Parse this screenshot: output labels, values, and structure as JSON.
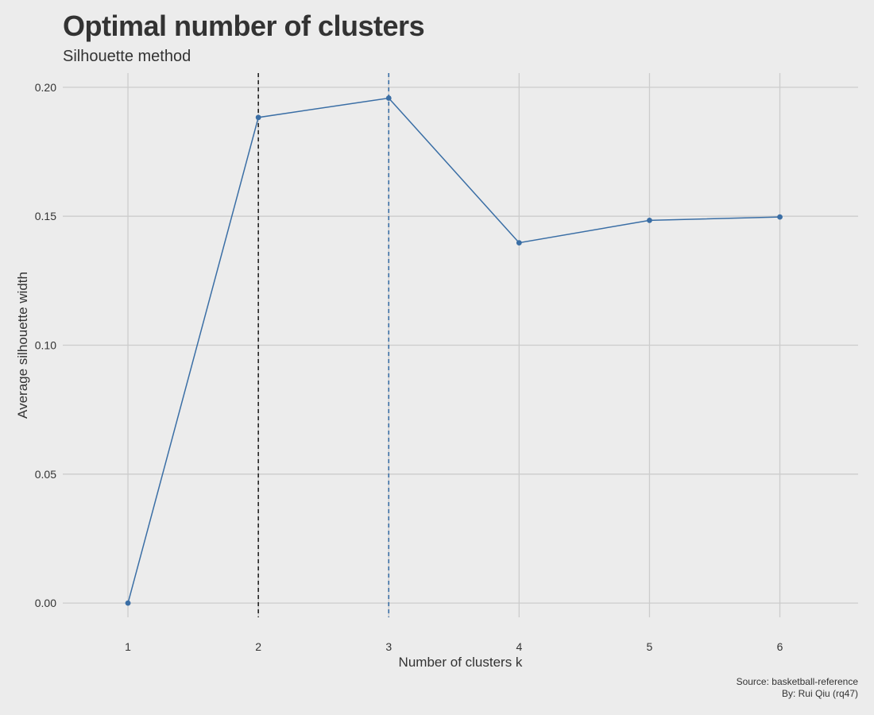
{
  "title": "Optimal number of clusters",
  "subtitle": "Silhouette method",
  "caption": {
    "line1": "Source: basketball-reference",
    "line2": "By: Rui Qiu (rq47)"
  },
  "chart_data": {
    "type": "line",
    "title": "Optimal number of clusters",
    "subtitle": "Silhouette method",
    "xlabel": "Number of clusters k",
    "ylabel": "Average silhouette width",
    "x": [
      1,
      2,
      3,
      4,
      5,
      6
    ],
    "x_tick_labels": [
      "1",
      "2",
      "3",
      "4",
      "5",
      "6"
    ],
    "y_ticks": [
      0.0,
      0.05,
      0.1,
      0.15,
      0.2
    ],
    "y_tick_labels": [
      "0.00",
      "0.05",
      "0.10",
      "0.15",
      "0.20"
    ],
    "xlim": [
      0.5,
      6.6
    ],
    "ylim": [
      -0.0055,
      0.2055
    ],
    "series": [
      {
        "values": [
          0.0,
          0.1883,
          0.1958,
          0.1397,
          0.1484,
          0.1497
        ],
        "color": "#3a6ea5"
      }
    ],
    "reference_lines": [
      {
        "x": 2,
        "color": "#222222",
        "style": "dashed"
      },
      {
        "x": 3,
        "color": "#3a6ea5",
        "style": "dashed"
      }
    ],
    "grid": true,
    "background": "#ececec",
    "grid_color": "#cccccc"
  }
}
